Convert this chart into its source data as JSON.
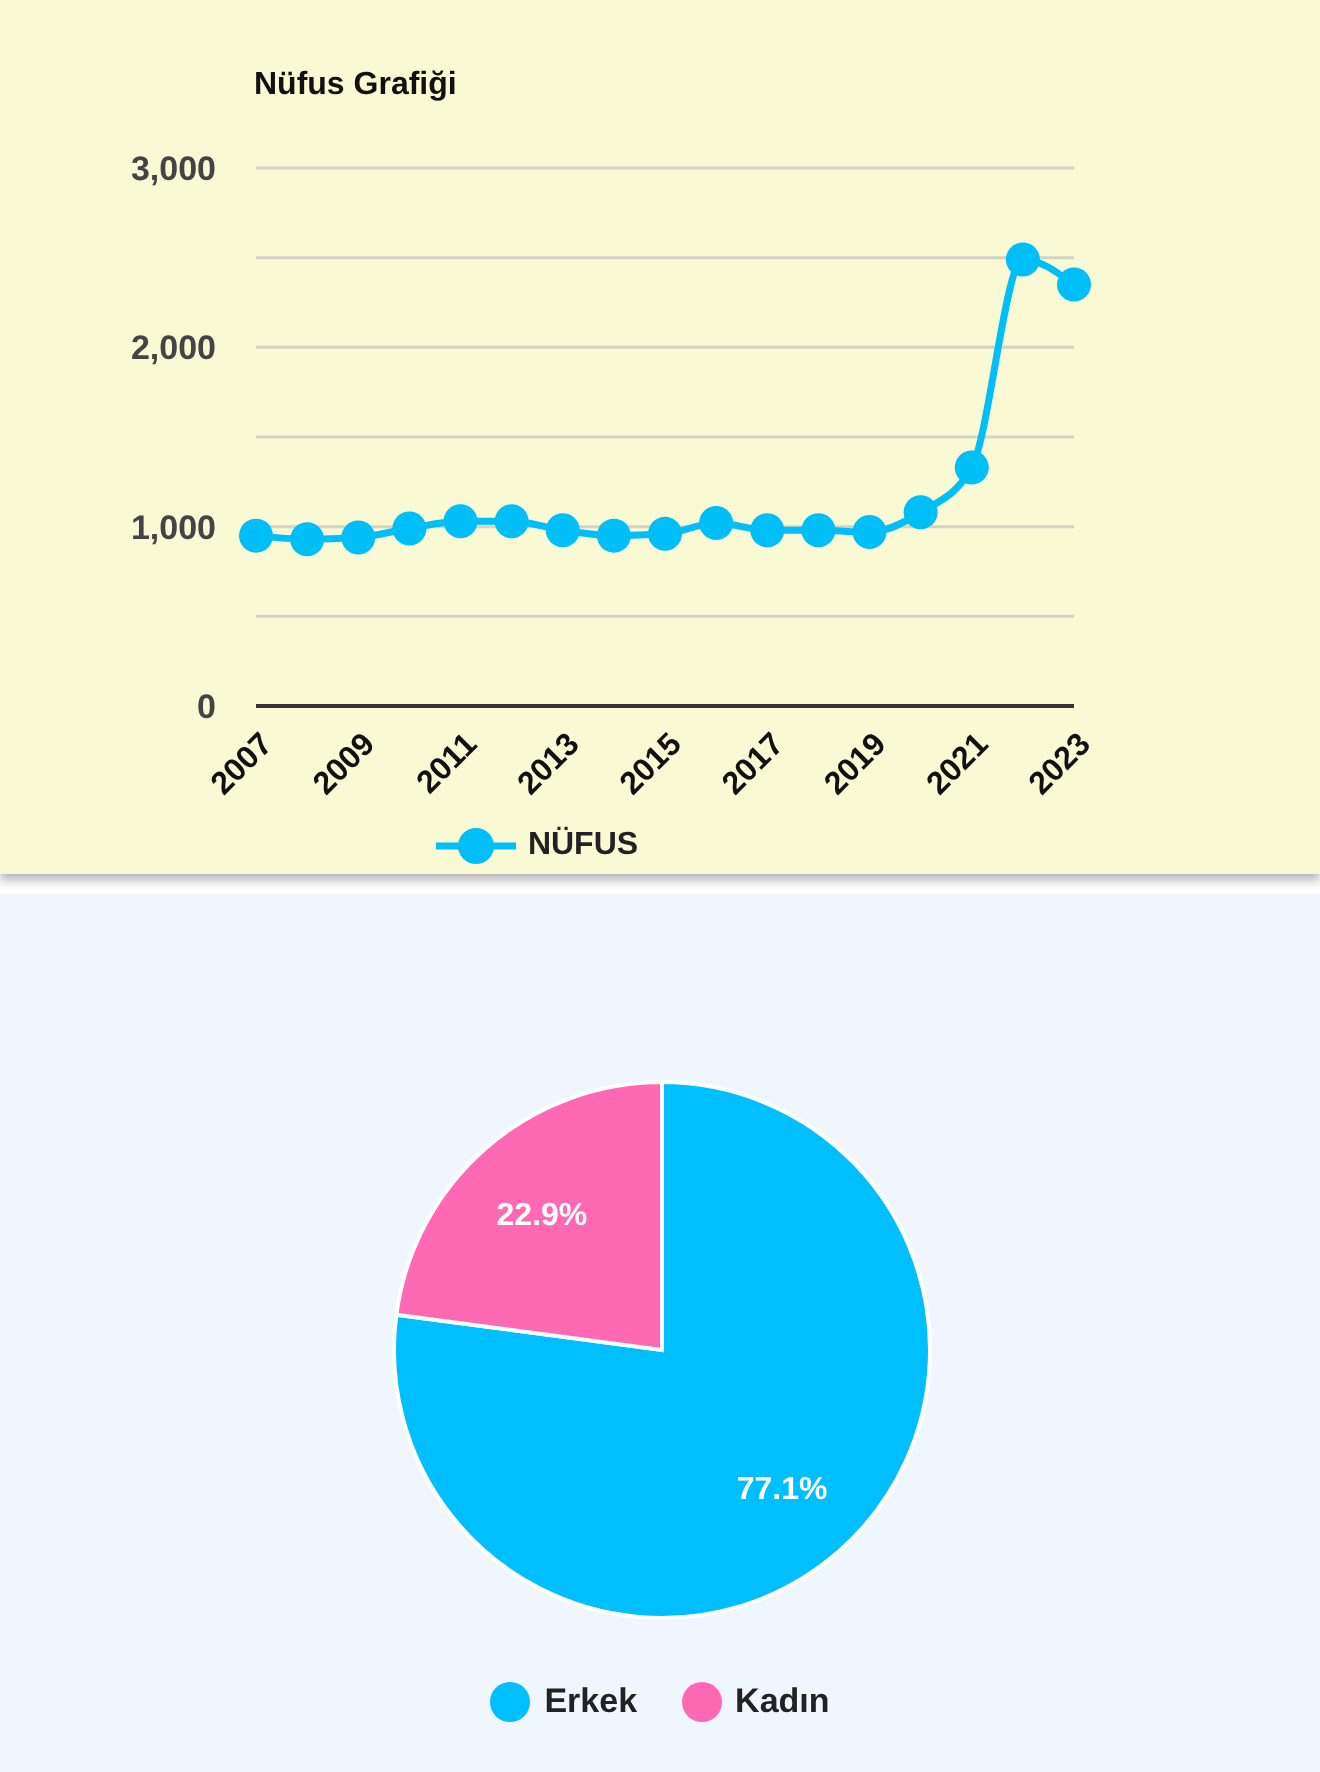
{
  "chart_data": [
    {
      "type": "line",
      "title": "Nüfus Grafiği",
      "categories": [
        "2007",
        null,
        "2009",
        null,
        "2011",
        null,
        "2013",
        null,
        "2015",
        null,
        "2017",
        null,
        "2019",
        null,
        "2021",
        null,
        "2023"
      ],
      "series": [
        {
          "name": "NÜFUS",
          "color": "#00bff8",
          "values": [
            950,
            930,
            940,
            990,
            1030,
            1030,
            980,
            950,
            960,
            1020,
            980,
            980,
            970,
            1080,
            1330,
            2490,
            2350
          ]
        }
      ],
      "ylim": [
        0,
        3000
      ],
      "yticks": [
        0,
        {
          "value": 500,
          "label": null
        },
        {
          "value": 1000,
          "label": "1,000"
        },
        {
          "value": 1500,
          "label": null
        },
        {
          "value": 2000,
          "label": "2,000"
        },
        {
          "value": 2500,
          "label": null
        },
        {
          "value": 3000,
          "label": "3,000"
        }
      ],
      "grid": "y",
      "legend": "bottom",
      "marker": "circle"
    },
    {
      "type": "pie",
      "categories": [
        "Erkek",
        "Kadın"
      ],
      "values": [
        77.1,
        22.9
      ],
      "colors": [
        "#00bfff",
        "#ff69b4"
      ],
      "value_labels": [
        "77.1%",
        "22.9%"
      ],
      "legend": "bottom"
    }
  ]
}
